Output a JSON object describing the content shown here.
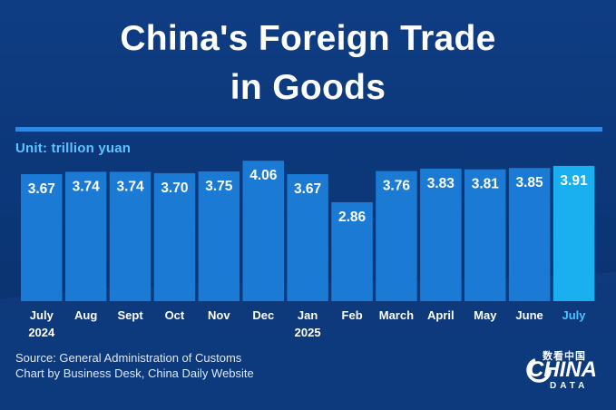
{
  "header": {
    "title_line1": "China's Foreign Trade",
    "title_line2": "in Goods",
    "unit": "Unit: trillion yuan"
  },
  "footer": {
    "source_line1": "Source: General Administration of Customs",
    "source_line2": "Chart by Business Desk, China Daily Website",
    "logo_cn": "数看中国",
    "logo_main": "CHINA",
    "logo_sub": "DATA"
  },
  "colors": {
    "bar": "#1a7ad4",
    "bar_highlight": "#1ab0f0",
    "label": "#ffffff",
    "highlight_label": "#4fc3ff"
  },
  "chart_data": {
    "type": "bar",
    "categories": [
      "July",
      "Aug",
      "Sept",
      "Oct",
      "Nov",
      "Dec",
      "Jan",
      "Feb",
      "March",
      "April",
      "May",
      "June",
      "July"
    ],
    "year_labels": [
      "2024",
      "",
      "",
      "",
      "",
      "",
      "2025",
      "",
      "",
      "",
      "",
      "",
      ""
    ],
    "values": [
      3.67,
      3.74,
      3.74,
      3.7,
      3.75,
      4.06,
      3.67,
      2.86,
      3.76,
      3.83,
      3.81,
      3.85,
      3.91
    ],
    "value_labels": [
      "3.67",
      "3.74",
      "3.74",
      "3.70",
      "3.75",
      "4.06",
      "3.67",
      "2.86",
      "3.76",
      "3.83",
      "3.81",
      "3.85",
      "3.91"
    ],
    "highlight_index": 12,
    "title": "China's Foreign Trade in Goods",
    "ylabel": "Unit: trillion yuan",
    "ylim": [
      0,
      4.3
    ],
    "grid": false,
    "legend": "none"
  }
}
